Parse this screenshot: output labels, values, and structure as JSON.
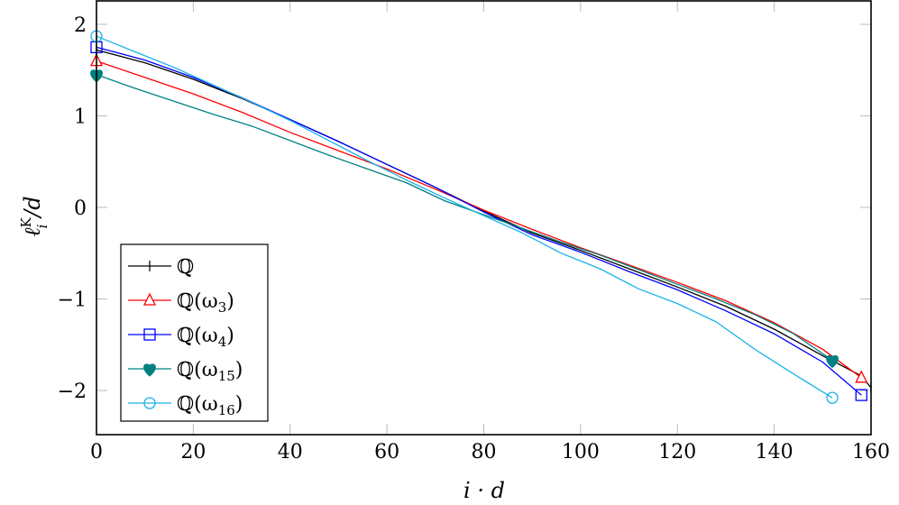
{
  "chart_data": {
    "type": "line",
    "title": "",
    "xlabel": "i · d",
    "ylabel": "ℓ_i^K / d",
    "xlim": [
      0,
      160
    ],
    "ylim": [
      -2.5,
      2.27
    ],
    "xticks": [
      0,
      20,
      40,
      60,
      80,
      100,
      120,
      140,
      160
    ],
    "yticks": [
      -2,
      -1,
      0,
      1,
      2
    ],
    "ytick_labels": [
      "−2",
      "−1",
      "0",
      "1",
      "2"
    ],
    "grid": false,
    "legend_position": "lower left",
    "series": [
      {
        "name": "ℚ",
        "color": "#000000",
        "marker": "plus",
        "x": [
          0,
          10,
          20,
          30,
          40,
          50,
          60,
          70,
          80,
          90,
          100,
          110,
          120,
          130,
          140,
          150,
          158,
          160
        ],
        "y": [
          1.72,
          1.58,
          1.4,
          1.19,
          0.96,
          0.72,
          0.47,
          0.22,
          -0.04,
          -0.28,
          -0.47,
          -0.67,
          -0.87,
          -1.08,
          -1.33,
          -1.62,
          -1.84,
          -1.97
        ],
        "marker_at": [
          [
            0,
            1.72
          ],
          [
            160,
            -1.97
          ]
        ]
      },
      {
        "name": "ℚ(ω₃)",
        "color": "#ff0000",
        "marker": "triangle",
        "x": [
          0,
          10,
          20,
          30,
          40,
          50,
          60,
          70,
          80,
          90,
          100,
          110,
          120,
          130,
          140,
          150,
          158
        ],
        "y": [
          1.6,
          1.42,
          1.24,
          1.04,
          0.82,
          0.62,
          0.42,
          0.2,
          -0.03,
          -0.24,
          -0.44,
          -0.63,
          -0.82,
          -1.02,
          -1.26,
          -1.55,
          -1.86
        ],
        "marker_at": [
          [
            0,
            1.6
          ],
          [
            158,
            -1.86
          ]
        ]
      },
      {
        "name": "ℚ(ω₄)",
        "color": "#0000ff",
        "marker": "square",
        "x": [
          0,
          10,
          20,
          30,
          40,
          50,
          60,
          70,
          80,
          90,
          100,
          110,
          120,
          130,
          140,
          150,
          158
        ],
        "y": [
          1.75,
          1.61,
          1.42,
          1.2,
          0.96,
          0.72,
          0.47,
          0.22,
          -0.05,
          -0.3,
          -0.49,
          -0.7,
          -0.9,
          -1.13,
          -1.38,
          -1.69,
          -2.05
        ],
        "marker_at": [
          [
            0,
            1.75
          ],
          [
            158,
            -2.05
          ]
        ]
      },
      {
        "name": "ℚ(ω₁₅)",
        "color": "#008080",
        "marker": "heart",
        "x": [
          0,
          8,
          16,
          24,
          32,
          40,
          48,
          56,
          64,
          72,
          80,
          88,
          96,
          104,
          112,
          120,
          128,
          136,
          144,
          152
        ],
        "y": [
          1.45,
          1.3,
          1.16,
          1.02,
          0.89,
          0.73,
          0.57,
          0.42,
          0.27,
          0.07,
          -0.08,
          -0.23,
          -0.38,
          -0.52,
          -0.68,
          -0.84,
          -1.0,
          -1.17,
          -1.38,
          -1.67
        ],
        "marker_at": [
          [
            0,
            1.45
          ],
          [
            152,
            -1.67
          ]
        ]
      },
      {
        "name": "ℚ(ω₁₆)",
        "color": "#1ab2e8",
        "marker": "circle",
        "x": [
          0,
          8,
          16,
          24,
          32,
          40,
          48,
          56,
          64,
          72,
          80,
          88,
          96,
          104,
          112,
          120,
          128,
          136,
          144,
          152
        ],
        "y": [
          1.87,
          1.7,
          1.53,
          1.34,
          1.15,
          0.95,
          0.73,
          0.51,
          0.3,
          0.1,
          -0.09,
          -0.28,
          -0.5,
          -0.67,
          -0.89,
          -1.05,
          -1.25,
          -1.55,
          -1.82,
          -2.08
        ],
        "marker_at": [
          [
            0,
            1.87
          ],
          [
            152,
            -2.08
          ]
        ]
      }
    ]
  },
  "legend": {
    "items": [
      {
        "label": "ℚ",
        "sub": ""
      },
      {
        "label": "ℚ(ω",
        "sub": "3"
      },
      {
        "label": "ℚ(ω",
        "sub": "4"
      },
      {
        "label": "ℚ(ω",
        "sub": "15"
      },
      {
        "label": "ℚ(ω",
        "sub": "16"
      }
    ]
  },
  "axes": {
    "xlabel": "i · d",
    "ylabel_main": "ℓ",
    "ylabel_sup": "K",
    "ylabel_sub": "i",
    "ylabel_tail": " /d"
  }
}
